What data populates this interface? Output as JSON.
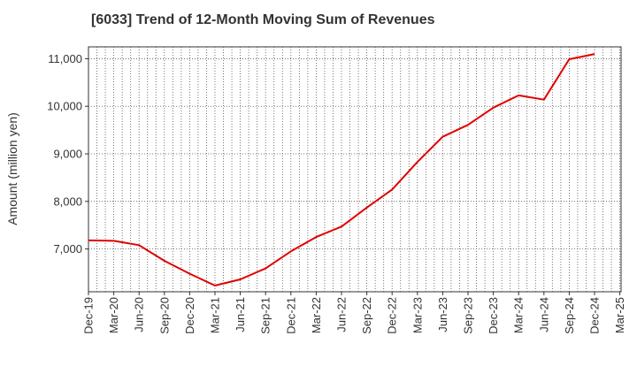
{
  "title": "[6033]  Trend of 12-Month Moving Sum of Revenues",
  "chart_data": {
    "type": "line",
    "title": "[6033]  Trend of 12-Month Moving Sum of Revenues",
    "xlabel": "",
    "ylabel": "Amount (million yen)",
    "ylim": [
      6100,
      11250
    ],
    "yticks": [
      7000,
      8000,
      9000,
      10000,
      11000
    ],
    "ytick_labels": [
      "7,000",
      "8,000",
      "9,000",
      "10,000",
      "11,000"
    ],
    "xtick_labels": [
      "Dec-19",
      "Mar-20",
      "Jun-20",
      "Sep-20",
      "Dec-20",
      "Mar-21",
      "Jun-21",
      "Sep-21",
      "Dec-21",
      "Mar-22",
      "Jun-22",
      "Sep-22",
      "Dec-22",
      "Mar-23",
      "Jun-23",
      "Sep-23",
      "Dec-23",
      "Mar-24",
      "Jun-24",
      "Sep-24",
      "Dec-24",
      "Mar-25"
    ],
    "grid": true,
    "series": [
      {
        "color": "#e00000",
        "x": [
          "Dec-19",
          "Mar-20",
          "Jun-20",
          "Sep-20",
          "Dec-20",
          "Mar-21",
          "Jun-21",
          "Sep-21",
          "Dec-21",
          "Mar-22",
          "Jun-22",
          "Sep-22",
          "Dec-22",
          "Mar-23",
          "Jun-23",
          "Sep-23",
          "Dec-23",
          "Mar-24",
          "Jun-24",
          "Sep-24",
          "Dec-24"
        ],
        "values": [
          7180,
          7170,
          7080,
          6750,
          6480,
          6230,
          6360,
          6590,
          6950,
          7250,
          7470,
          7870,
          8250,
          8830,
          9360,
          9610,
          9970,
          10230,
          10140,
          10990,
          11100
        ]
      }
    ]
  }
}
